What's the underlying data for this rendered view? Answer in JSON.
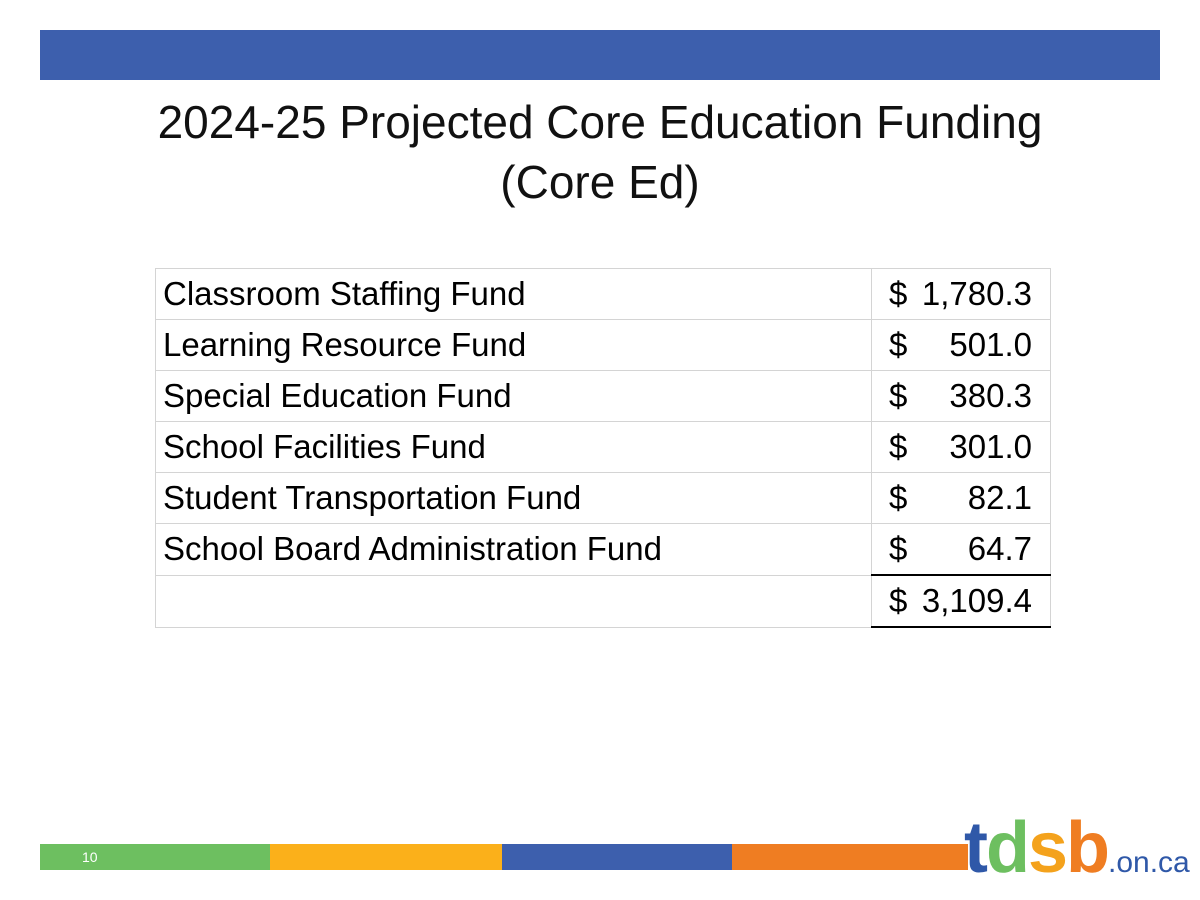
{
  "colors": {
    "top_bar": "#3d5fad",
    "green": "#6dbf60",
    "yellow": "#fbb01a",
    "blue": "#3d5fad",
    "orange": "#ef7d22",
    "logo_t": "#2f58a8",
    "logo_d": "#6dbf60",
    "logo_s": "#f4a21c",
    "logo_b": "#ef7d22"
  },
  "slide": {
    "title_line1": "2024-25 Projected Core Education Funding",
    "title_line2": "(Core Ed)",
    "page_number": "10"
  },
  "table": {
    "rows": [
      {
        "label": "Classroom Staffing Fund",
        "currency": "$",
        "amount": "1,780.3"
      },
      {
        "label": "Learning Resource Fund",
        "currency": "$",
        "amount": "501.0"
      },
      {
        "label": "Special Education Fund",
        "currency": "$",
        "amount": "380.3"
      },
      {
        "label": "School Facilities Fund",
        "currency": "$",
        "amount": "301.0"
      },
      {
        "label": "Student Transportation Fund",
        "currency": "$",
        "amount": "82.1"
      },
      {
        "label": "School Board Administration Fund",
        "currency": "$",
        "amount": "64.7"
      }
    ],
    "total": {
      "label": "",
      "currency": "$",
      "amount": "3,109.4"
    }
  },
  "logo": {
    "t": "t",
    "d": "d",
    "s": "s",
    "b": "b",
    "suffix": ".on.ca"
  }
}
